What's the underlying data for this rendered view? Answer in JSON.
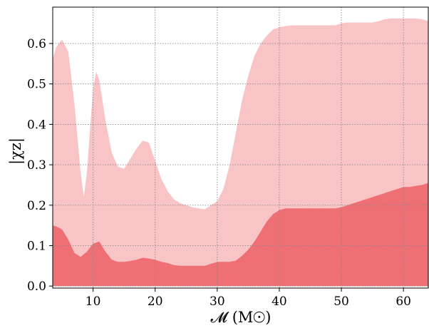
{
  "chart_data": {
    "type": "area",
    "title": "",
    "xlabel": "𝓜 (M☉)",
    "ylabel": "|χz|",
    "xlim": [
      3.5,
      64
    ],
    "ylim": [
      -0.005,
      0.69
    ],
    "xticks": [
      10,
      20,
      30,
      40,
      50,
      60
    ],
    "yticks": [
      0.0,
      0.1,
      0.2,
      0.3,
      0.4,
      0.5,
      0.6
    ],
    "ytick_labels": [
      "0.0",
      "0.1",
      "0.2",
      "0.3",
      "0.4",
      "0.5",
      "0.6"
    ],
    "grid": true,
    "series": [
      {
        "color": "#f8c4c6",
        "x": [
          3.5,
          4,
          5,
          6,
          7,
          8,
          8.5,
          9,
          10,
          10.5,
          11,
          12,
          13,
          14,
          15,
          16,
          17,
          18,
          19,
          20,
          21,
          22,
          23,
          24,
          25,
          26,
          27,
          28,
          29,
          30,
          31,
          32,
          33,
          34,
          35,
          36,
          37,
          38,
          39,
          40,
          41,
          42,
          43,
          44,
          45,
          46,
          47,
          48,
          49,
          50,
          51,
          52,
          53,
          54,
          55,
          56,
          57,
          58,
          59,
          60,
          61,
          62,
          63,
          64
        ],
        "values": [
          0.56,
          0.59,
          0.61,
          0.58,
          0.45,
          0.28,
          0.22,
          0.28,
          0.49,
          0.53,
          0.51,
          0.41,
          0.33,
          0.295,
          0.29,
          0.315,
          0.34,
          0.36,
          0.355,
          0.31,
          0.265,
          0.235,
          0.215,
          0.205,
          0.2,
          0.195,
          0.192,
          0.19,
          0.2,
          0.21,
          0.24,
          0.3,
          0.38,
          0.46,
          0.52,
          0.57,
          0.6,
          0.62,
          0.635,
          0.64,
          0.643,
          0.645,
          0.645,
          0.645,
          0.645,
          0.645,
          0.645,
          0.645,
          0.645,
          0.65,
          0.652,
          0.652,
          0.652,
          0.652,
          0.652,
          0.655,
          0.66,
          0.662,
          0.662,
          0.662,
          0.662,
          0.662,
          0.66,
          0.655
        ]
      },
      {
        "color": "#ee7074",
        "x": [
          3.5,
          4,
          5,
          6,
          7,
          8,
          9,
          10,
          11,
          12,
          13,
          14,
          15,
          16,
          17,
          18,
          19,
          20,
          21,
          22,
          23,
          24,
          25,
          26,
          27,
          28,
          29,
          30,
          31,
          32,
          33,
          34,
          35,
          36,
          37,
          38,
          39,
          40,
          41,
          42,
          43,
          44,
          45,
          46,
          47,
          48,
          49,
          50,
          51,
          52,
          53,
          54,
          55,
          56,
          57,
          58,
          59,
          60,
          61,
          62,
          63,
          64
        ],
        "values": [
          0.15,
          0.148,
          0.14,
          0.115,
          0.082,
          0.072,
          0.085,
          0.105,
          0.11,
          0.085,
          0.065,
          0.06,
          0.06,
          0.062,
          0.065,
          0.07,
          0.068,
          0.065,
          0.06,
          0.057,
          0.052,
          0.05,
          0.05,
          0.05,
          0.05,
          0.05,
          0.055,
          0.06,
          0.06,
          0.06,
          0.063,
          0.075,
          0.09,
          0.11,
          0.135,
          0.16,
          0.178,
          0.188,
          0.192,
          0.192,
          0.192,
          0.192,
          0.192,
          0.192,
          0.192,
          0.192,
          0.192,
          0.195,
          0.2,
          0.205,
          0.21,
          0.215,
          0.22,
          0.225,
          0.23,
          0.235,
          0.24,
          0.245,
          0.245,
          0.248,
          0.25,
          0.255
        ]
      }
    ]
  }
}
